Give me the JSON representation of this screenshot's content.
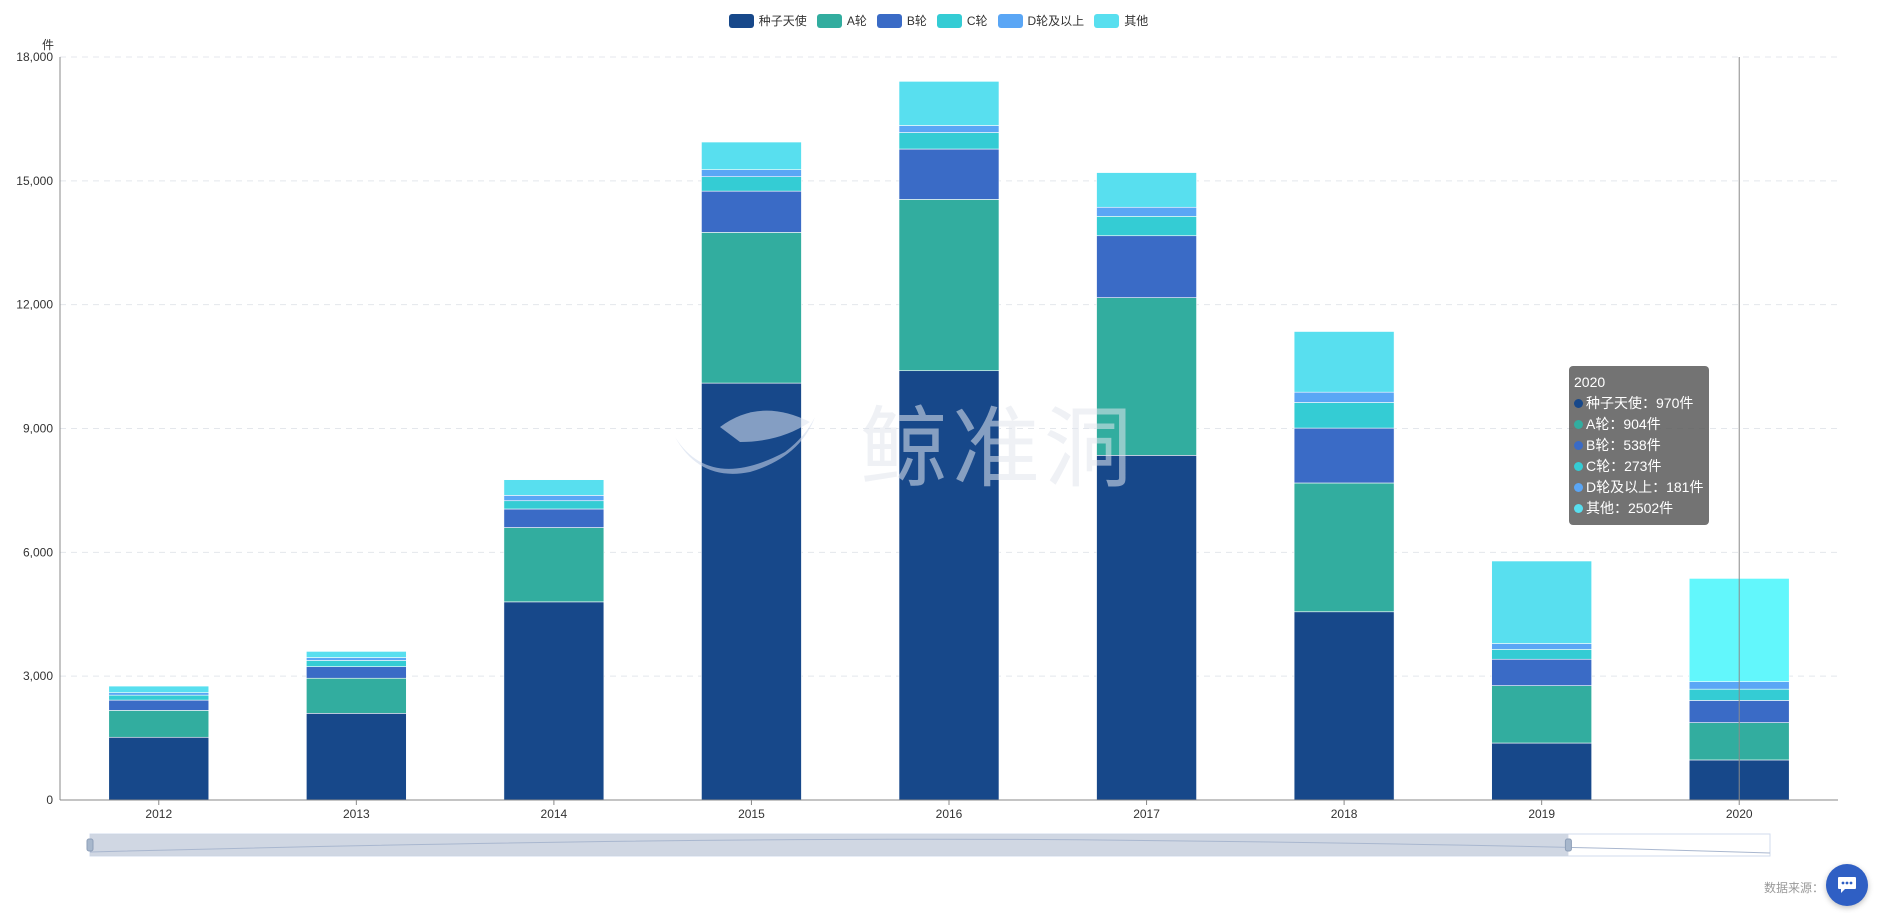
{
  "legend": [
    {
      "name": "种子天使",
      "color": "#17488a"
    },
    {
      "name": "A轮",
      "color": "#32ad9f"
    },
    {
      "name": "B轮",
      "color": "#3a6bc6"
    },
    {
      "name": "C轮",
      "color": "#34ccd4"
    },
    {
      "name": "D轮及以上",
      "color": "#5aa6f5"
    },
    {
      "name": "其他",
      "color": "#58dfef"
    }
  ],
  "chart_data": {
    "type": "bar",
    "stacked": true,
    "categories": [
      "2012",
      "2013",
      "2014",
      "2015",
      "2016",
      "2017",
      "2018",
      "2019",
      "2020"
    ],
    "y_unit": "件",
    "ylim": [
      0,
      18000
    ],
    "yticks": [
      "0",
      "3,000",
      "6,000",
      "9,000",
      "12,000",
      "15,000",
      "18,000"
    ],
    "grid": true,
    "legend_position": "top-center",
    "series": [
      {
        "name": "种子天使",
        "color": "#17488a",
        "values": [
          1520,
          2100,
          4800,
          10100,
          10400,
          8350,
          4560,
          1380,
          970
        ]
      },
      {
        "name": "A轮",
        "color": "#32ad9f",
        "values": [
          650,
          850,
          1800,
          3650,
          4150,
          3820,
          3120,
          1390,
          904
        ]
      },
      {
        "name": "B轮",
        "color": "#3a6bc6",
        "values": [
          250,
          280,
          450,
          1000,
          1220,
          1500,
          1330,
          640,
          538
        ]
      },
      {
        "name": "C轮",
        "color": "#34ccd4",
        "values": [
          120,
          150,
          200,
          350,
          400,
          470,
          620,
          240,
          273
        ]
      },
      {
        "name": "D轮及以上",
        "color": "#5aa6f5",
        "values": [
          60,
          70,
          130,
          170,
          170,
          220,
          250,
          140,
          181
        ]
      },
      {
        "name": "其他",
        "color": "#58dfef",
        "values": [
          160,
          150,
          380,
          670,
          1070,
          840,
          1470,
          2000,
          2502
        ]
      }
    ],
    "highlight": {
      "category": "2020",
      "other_color": "#62f7fc"
    }
  },
  "tooltip": {
    "title": "2020",
    "rows": [
      {
        "text": "种子天使：970件",
        "color": "#17488a"
      },
      {
        "text": "A轮：904件",
        "color": "#32ad9f"
      },
      {
        "text": "B轮：538件",
        "color": "#3a6bc6"
      },
      {
        "text": "C轮：273件",
        "color": "#34ccd4"
      },
      {
        "text": "D轮及以上：181件",
        "color": "#5aa6f5"
      },
      {
        "text": "其他：2502件",
        "color": "#58dfef"
      }
    ]
  },
  "watermark": {
    "text": "鲸准洞"
  },
  "footer": {
    "source_label": "数据来源：",
    "chat_icon": "chat-icon"
  },
  "zoom": {
    "start_fraction": 0.0,
    "end_fraction": 0.88
  }
}
